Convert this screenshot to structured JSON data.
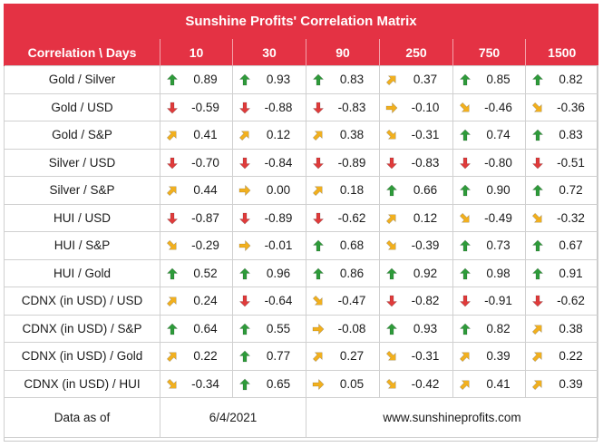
{
  "title": "Sunshine Profits' Correlation Matrix",
  "header": {
    "corner": "Correlation \\ Days",
    "days": [
      "10",
      "30",
      "90",
      "250",
      "750",
      "1500"
    ]
  },
  "colors": {
    "header_bg": "#e43244",
    "up": "#2e9b3a",
    "down": "#e03b3b",
    "flat": "#f2b01e"
  },
  "rows": [
    {
      "label": "Gold / Silver",
      "cells": [
        {
          "value": "0.89",
          "icon": "arrow-up-icon"
        },
        {
          "value": "0.93",
          "icon": "arrow-up-icon"
        },
        {
          "value": "0.83",
          "icon": "arrow-up-icon"
        },
        {
          "value": "0.37",
          "icon": "arrow-up-right-icon"
        },
        {
          "value": "0.85",
          "icon": "arrow-up-icon"
        },
        {
          "value": "0.82",
          "icon": "arrow-up-icon"
        }
      ]
    },
    {
      "label": "Gold / USD",
      "cells": [
        {
          "value": "-0.59",
          "icon": "arrow-down-icon"
        },
        {
          "value": "-0.88",
          "icon": "arrow-down-icon"
        },
        {
          "value": "-0.83",
          "icon": "arrow-down-icon"
        },
        {
          "value": "-0.10",
          "icon": "arrow-right-icon"
        },
        {
          "value": "-0.46",
          "icon": "arrow-down-right-icon"
        },
        {
          "value": "-0.36",
          "icon": "arrow-down-right-icon"
        }
      ]
    },
    {
      "label": "Gold / S&P",
      "cells": [
        {
          "value": "0.41",
          "icon": "arrow-up-right-icon"
        },
        {
          "value": "0.12",
          "icon": "arrow-up-right-icon"
        },
        {
          "value": "0.38",
          "icon": "arrow-up-right-icon"
        },
        {
          "value": "-0.31",
          "icon": "arrow-down-right-icon"
        },
        {
          "value": "0.74",
          "icon": "arrow-up-icon"
        },
        {
          "value": "0.83",
          "icon": "arrow-up-icon"
        }
      ]
    },
    {
      "label": "Silver / USD",
      "cells": [
        {
          "value": "-0.70",
          "icon": "arrow-down-icon"
        },
        {
          "value": "-0.84",
          "icon": "arrow-down-icon"
        },
        {
          "value": "-0.89",
          "icon": "arrow-down-icon"
        },
        {
          "value": "-0.83",
          "icon": "arrow-down-icon"
        },
        {
          "value": "-0.80",
          "icon": "arrow-down-icon"
        },
        {
          "value": "-0.51",
          "icon": "arrow-down-icon"
        }
      ]
    },
    {
      "label": "Silver / S&P",
      "cells": [
        {
          "value": "0.44",
          "icon": "arrow-up-right-icon"
        },
        {
          "value": "0.00",
          "icon": "arrow-right-icon"
        },
        {
          "value": "0.18",
          "icon": "arrow-up-right-icon"
        },
        {
          "value": "0.66",
          "icon": "arrow-up-icon"
        },
        {
          "value": "0.90",
          "icon": "arrow-up-icon"
        },
        {
          "value": "0.72",
          "icon": "arrow-up-icon"
        }
      ]
    },
    {
      "label": "HUI / USD",
      "cells": [
        {
          "value": "-0.87",
          "icon": "arrow-down-icon"
        },
        {
          "value": "-0.89",
          "icon": "arrow-down-icon"
        },
        {
          "value": "-0.62",
          "icon": "arrow-down-icon"
        },
        {
          "value": "0.12",
          "icon": "arrow-up-right-icon"
        },
        {
          "value": "-0.49",
          "icon": "arrow-down-right-icon"
        },
        {
          "value": "-0.32",
          "icon": "arrow-down-right-icon"
        }
      ]
    },
    {
      "label": "HUI / S&P",
      "cells": [
        {
          "value": "-0.29",
          "icon": "arrow-down-right-icon"
        },
        {
          "value": "-0.01",
          "icon": "arrow-right-icon"
        },
        {
          "value": "0.68",
          "icon": "arrow-up-icon"
        },
        {
          "value": "-0.39",
          "icon": "arrow-down-right-icon"
        },
        {
          "value": "0.73",
          "icon": "arrow-up-icon"
        },
        {
          "value": "0.67",
          "icon": "arrow-up-icon"
        }
      ]
    },
    {
      "label": "HUI / Gold",
      "cells": [
        {
          "value": "0.52",
          "icon": "arrow-up-icon"
        },
        {
          "value": "0.96",
          "icon": "arrow-up-icon"
        },
        {
          "value": "0.86",
          "icon": "arrow-up-icon"
        },
        {
          "value": "0.92",
          "icon": "arrow-up-icon"
        },
        {
          "value": "0.98",
          "icon": "arrow-up-icon"
        },
        {
          "value": "0.91",
          "icon": "arrow-up-icon"
        }
      ]
    },
    {
      "label": "CDNX (in USD) / USD",
      "cells": [
        {
          "value": "0.24",
          "icon": "arrow-up-right-icon"
        },
        {
          "value": "-0.64",
          "icon": "arrow-down-icon"
        },
        {
          "value": "-0.47",
          "icon": "arrow-down-right-icon"
        },
        {
          "value": "-0.82",
          "icon": "arrow-down-icon"
        },
        {
          "value": "-0.91",
          "icon": "arrow-down-icon"
        },
        {
          "value": "-0.62",
          "icon": "arrow-down-icon"
        }
      ]
    },
    {
      "label": "CDNX (in USD) / S&P",
      "cells": [
        {
          "value": "0.64",
          "icon": "arrow-up-icon"
        },
        {
          "value": "0.55",
          "icon": "arrow-up-icon"
        },
        {
          "value": "-0.08",
          "icon": "arrow-right-icon"
        },
        {
          "value": "0.93",
          "icon": "arrow-up-icon"
        },
        {
          "value": "0.82",
          "icon": "arrow-up-icon"
        },
        {
          "value": "0.38",
          "icon": "arrow-up-right-icon"
        }
      ]
    },
    {
      "label": "CDNX (in USD) / Gold",
      "cells": [
        {
          "value": "0.22",
          "icon": "arrow-up-right-icon"
        },
        {
          "value": "0.77",
          "icon": "arrow-up-icon"
        },
        {
          "value": "0.27",
          "icon": "arrow-up-right-icon"
        },
        {
          "value": "-0.31",
          "icon": "arrow-down-right-icon"
        },
        {
          "value": "0.39",
          "icon": "arrow-up-right-icon"
        },
        {
          "value": "0.22",
          "icon": "arrow-up-right-icon"
        }
      ]
    },
    {
      "label": "CDNX (in USD) / HUI",
      "cells": [
        {
          "value": "-0.34",
          "icon": "arrow-down-right-icon"
        },
        {
          "value": "0.65",
          "icon": "arrow-up-icon"
        },
        {
          "value": "0.05",
          "icon": "arrow-right-icon"
        },
        {
          "value": "-0.42",
          "icon": "arrow-down-right-icon"
        },
        {
          "value": "0.41",
          "icon": "arrow-up-right-icon"
        },
        {
          "value": "0.39",
          "icon": "arrow-up-right-icon"
        }
      ]
    }
  ],
  "footer": {
    "label": "Data as of",
    "date": "6/4/2021",
    "website": "www.sunshineprofits.com"
  }
}
